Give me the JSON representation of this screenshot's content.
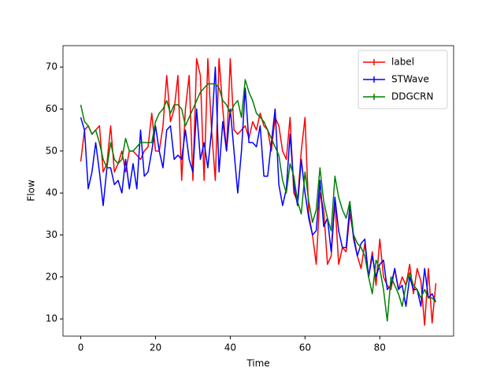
{
  "chart_data": {
    "type": "line",
    "x_label": "Time",
    "y_label": "Flow",
    "x": [
      0,
      1,
      2,
      3,
      4,
      5,
      6,
      7,
      8,
      9,
      10,
      11,
      12,
      13,
      14,
      15,
      16,
      17,
      18,
      19,
      20,
      21,
      22,
      23,
      24,
      25,
      26,
      27,
      28,
      29,
      30,
      31,
      32,
      33,
      34,
      35,
      36,
      37,
      38,
      39,
      40,
      41,
      42,
      43,
      44,
      45,
      46,
      47,
      48,
      49,
      50,
      51,
      52,
      53,
      54,
      55,
      56,
      57,
      58,
      59,
      60,
      61,
      62,
      63,
      64,
      65,
      66,
      67,
      68,
      69,
      70,
      71,
      72,
      73,
      74,
      75,
      76,
      77,
      78,
      79,
      80,
      81,
      82,
      83,
      84,
      85,
      86,
      87,
      88,
      89,
      90,
      91,
      92,
      93,
      94,
      95
    ],
    "series": [
      {
        "name": "label",
        "color": "#ff0000",
        "values": [
          47.5,
          55,
          56,
          54,
          55,
          56,
          45,
          47,
          56,
          45,
          47,
          50,
          45,
          50,
          50,
          49,
          48,
          50,
          51,
          59,
          50,
          50,
          56,
          68,
          57,
          60,
          68,
          43,
          60,
          68,
          43,
          72,
          68,
          43,
          72,
          55,
          43,
          72,
          60,
          50,
          72,
          55,
          54,
          55,
          56,
          53,
          57,
          55,
          59,
          56,
          55,
          50,
          58,
          56,
          50,
          48,
          58,
          40,
          38,
          50,
          58,
          35,
          30,
          23,
          40,
          36,
          23,
          25,
          38,
          23,
          27,
          26,
          35,
          30,
          25,
          22,
          28,
          20,
          26,
          18,
          29,
          20,
          18,
          17,
          22,
          17,
          20,
          18,
          23,
          16,
          22,
          19,
          8.5,
          22,
          9,
          18.5
        ]
      },
      {
        "name": "STWave",
        "color": "#0000ff",
        "values": [
          58,
          55,
          41,
          45,
          52,
          45,
          37,
          46,
          46,
          42,
          43,
          40,
          48,
          41,
          47,
          41,
          55,
          44,
          45,
          50,
          56,
          50,
          46,
          55,
          56,
          48,
          49,
          48,
          55,
          48,
          45,
          60,
          48,
          52,
          46,
          55,
          70,
          45,
          57,
          50,
          60,
          50,
          40,
          50,
          65,
          52,
          52,
          51,
          56,
          44,
          44,
          52,
          60,
          42,
          37,
          41,
          54,
          42,
          37,
          48,
          40,
          34,
          30,
          31,
          43,
          32,
          34,
          26,
          39,
          31,
          27,
          27,
          37,
          29,
          25,
          28,
          29,
          20,
          25,
          20,
          23,
          24,
          17,
          18,
          22,
          17,
          18,
          13,
          20,
          17,
          17,
          13,
          22,
          15,
          16,
          14
        ]
      },
      {
        "name": "DDGCRN",
        "color": "#008000",
        "values": [
          61,
          57,
          56,
          54,
          55,
          52,
          48,
          46,
          52,
          48,
          47,
          48,
          53,
          50,
          50,
          51,
          52,
          52,
          52,
          52,
          57,
          59,
          60,
          62,
          59,
          61,
          61,
          60,
          56,
          58,
          60,
          62,
          64,
          65,
          66,
          66,
          66,
          65,
          62,
          61,
          59,
          61,
          62,
          58,
          67,
          64,
          62,
          59,
          58,
          57,
          55,
          53,
          51,
          49,
          43,
          40,
          47,
          44,
          38,
          35,
          45,
          38,
          33,
          36,
          46,
          38,
          34,
          31,
          44,
          39,
          36,
          34,
          38,
          30,
          28,
          27,
          25,
          20,
          16,
          24,
          22,
          17,
          9.5,
          20,
          18,
          16,
          13,
          18,
          21,
          18,
          17,
          15,
          17,
          15,
          15,
          14
        ]
      }
    ],
    "xlim": [
      -4.75,
      99.75
    ],
    "ylim": [
      5.9,
      75.1
    ],
    "xticks": [
      0,
      20,
      40,
      60,
      80
    ],
    "yticks": [
      10,
      20,
      30,
      40,
      50,
      60,
      70
    ],
    "legend": "upper right"
  }
}
